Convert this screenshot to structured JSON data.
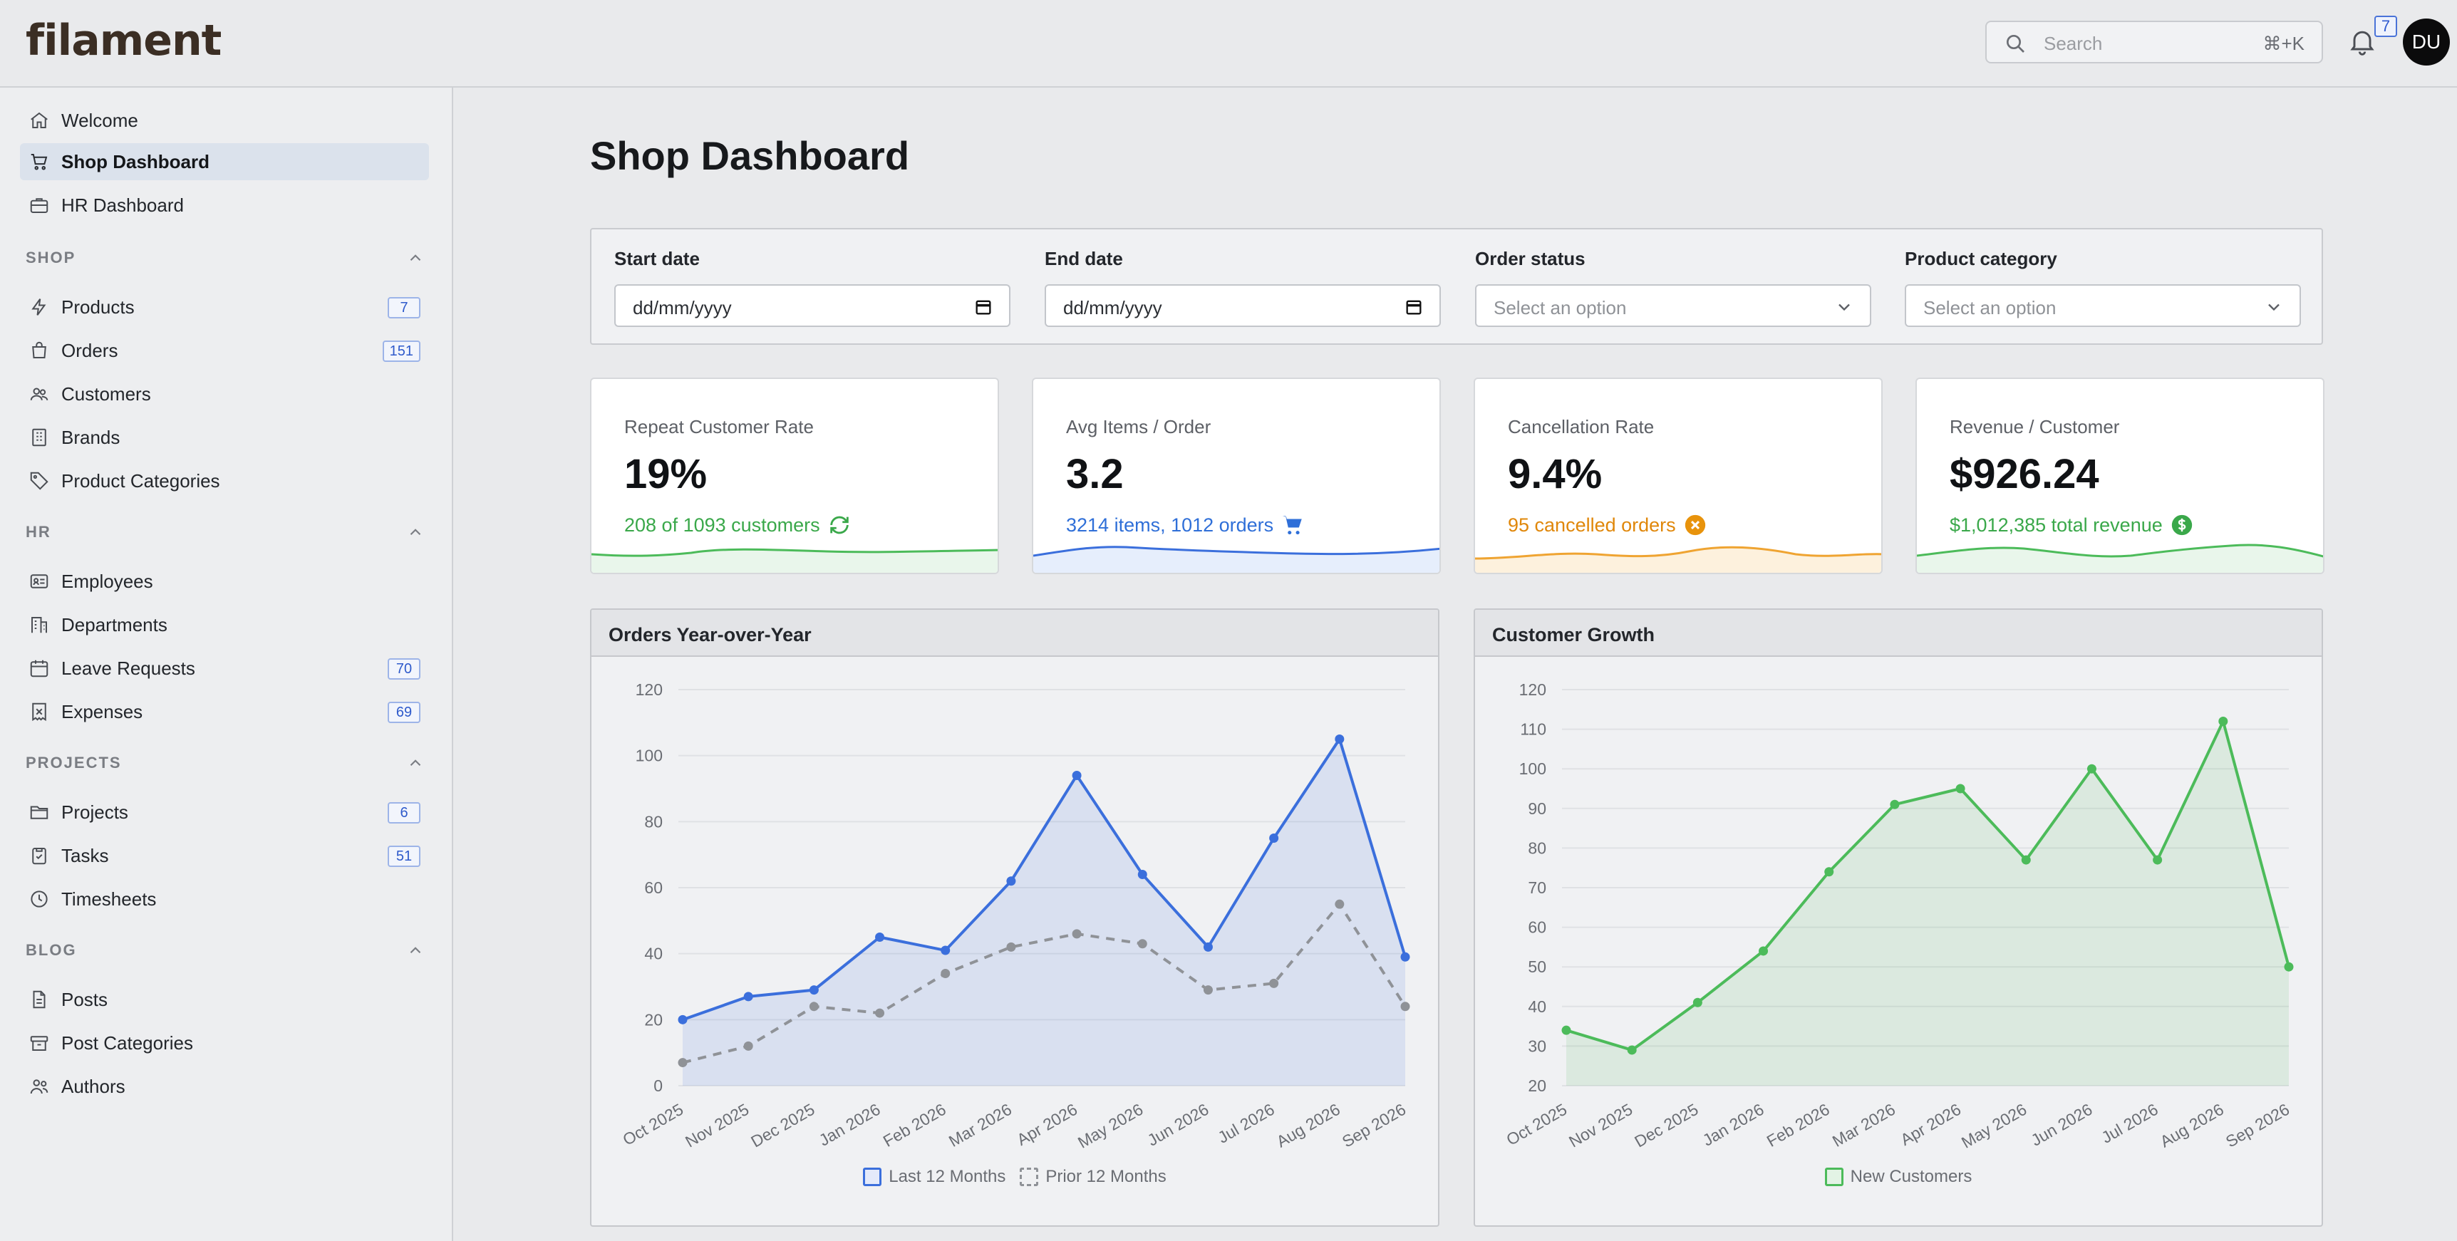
{
  "app": {
    "brand": "filament"
  },
  "topbar": {
    "search_placeholder": "Search",
    "search_shortcut": "⌘+K",
    "notification_count": "7",
    "avatar_initials": "DU"
  },
  "sidebar": {
    "top_items": [
      {
        "label": "Welcome",
        "icon": "home-icon"
      },
      {
        "label": "Shop Dashboard",
        "icon": "cart-icon",
        "active": true
      },
      {
        "label": "HR Dashboard",
        "icon": "briefcase-icon"
      }
    ],
    "groups": [
      {
        "title": "SHOP",
        "items": [
          {
            "label": "Products",
            "icon": "bolt-icon",
            "count": "7"
          },
          {
            "label": "Orders",
            "icon": "bag-icon",
            "count": "151"
          },
          {
            "label": "Customers",
            "icon": "users-icon"
          },
          {
            "label": "Brands",
            "icon": "building-icon"
          },
          {
            "label": "Product Categories",
            "icon": "tag-icon"
          }
        ]
      },
      {
        "title": "HR",
        "items": [
          {
            "label": "Employees",
            "icon": "id-card-icon"
          },
          {
            "label": "Departments",
            "icon": "office-icon"
          },
          {
            "label": "Leave Requests",
            "icon": "calendar-icon",
            "count": "70"
          },
          {
            "label": "Expenses",
            "icon": "receipt-icon",
            "count": "69"
          }
        ]
      },
      {
        "title": "PROJECTS",
        "items": [
          {
            "label": "Projects",
            "icon": "folder-icon",
            "count": "6"
          },
          {
            "label": "Tasks",
            "icon": "clipboard-icon",
            "count": "51"
          },
          {
            "label": "Timesheets",
            "icon": "clock-icon"
          }
        ]
      },
      {
        "title": "BLOG",
        "items": [
          {
            "label": "Posts",
            "icon": "document-icon"
          },
          {
            "label": "Post Categories",
            "icon": "archive-icon"
          },
          {
            "label": "Authors",
            "icon": "user-group-icon"
          }
        ]
      }
    ]
  },
  "main": {
    "title": "Shop Dashboard",
    "filters": [
      {
        "label": "Start date",
        "value": "dd/mm/yyyy",
        "type": "date"
      },
      {
        "label": "End date",
        "value": "dd/mm/yyyy",
        "type": "date"
      },
      {
        "label": "Order status",
        "placeholder": "Select an option",
        "type": "select"
      },
      {
        "label": "Product category",
        "placeholder": "Select an option",
        "type": "select"
      }
    ],
    "stats": [
      {
        "label": "Repeat Customer Rate",
        "value": "19%",
        "description": "208 of 1093 customers",
        "icon": "refresh-icon",
        "color": "#3aa84a"
      },
      {
        "label": "Avg Items / Order",
        "value": "3.2",
        "description": "3214 items, 1012 orders",
        "icon": "shopping-cart-icon",
        "color": "#2f6fd8"
      },
      {
        "label": "Cancellation Rate",
        "value": "9.4%",
        "description": "95 cancelled orders",
        "icon": "x-circle-icon",
        "color": "#e8930c"
      },
      {
        "label": "Revenue / Customer",
        "value": "$926.24",
        "description": "$1,012,385 total revenue",
        "icon": "currency-dollar-icon",
        "color": "#3aa84a"
      }
    ]
  },
  "chart_data": [
    {
      "type": "area",
      "title": "Orders Year-over-Year",
      "x": [
        "Oct 2025",
        "Nov 2025",
        "Dec 2025",
        "Jan 2026",
        "Feb 2026",
        "Mar 2026",
        "Apr 2026",
        "May 2026",
        "Jun 2026",
        "Jul 2026",
        "Aug 2026",
        "Sep 2026"
      ],
      "ylim": [
        0,
        120
      ],
      "yticks": [
        0,
        20,
        40,
        60,
        80,
        100,
        120
      ],
      "grid": true,
      "legend": "bottom",
      "series": [
        {
          "name": "Last 12 Months",
          "values": [
            20,
            27,
            29,
            45,
            41,
            62,
            94,
            64,
            42,
            75,
            105,
            39
          ],
          "color": "#3b6fdc",
          "style": "solid",
          "fill": true
        },
        {
          "name": "Prior 12 Months",
          "values": [
            7,
            12,
            24,
            22,
            34,
            42,
            46,
            43,
            29,
            31,
            55,
            24
          ],
          "color": "#8f9297",
          "style": "dashed",
          "fill": false
        }
      ]
    },
    {
      "type": "area",
      "title": "Customer Growth",
      "x": [
        "Oct 2025",
        "Nov 2025",
        "Dec 2025",
        "Jan 2026",
        "Feb 2026",
        "Mar 2026",
        "Apr 2026",
        "May 2026",
        "Jun 2026",
        "Jul 2026",
        "Aug 2026",
        "Sep 2026"
      ],
      "ylim": [
        20,
        120
      ],
      "yticks": [
        20,
        30,
        40,
        50,
        60,
        70,
        80,
        90,
        100,
        110,
        120
      ],
      "grid": true,
      "legend": "bottom",
      "series": [
        {
          "name": "New Customers",
          "values": [
            34,
            29,
            41,
            54,
            74,
            91,
            95,
            77,
            100,
            77,
            112,
            50
          ],
          "color": "#4cbb5a",
          "style": "solid",
          "fill": true
        }
      ]
    }
  ]
}
